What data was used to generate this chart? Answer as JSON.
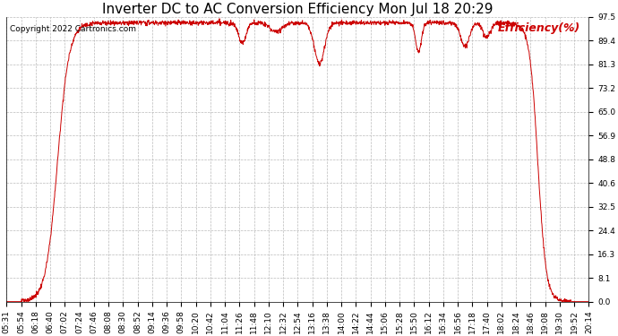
{
  "title": "Inverter DC to AC Conversion Efficiency Mon Jul 18 20:29",
  "copyright": "Copyright 2022 Cartronics.com",
  "legend_label": "Efficiency(%)",
  "line_color": "#cc0000",
  "background_color": "#ffffff",
  "grid_color": "#bbbbbb",
  "yticks": [
    0.0,
    8.1,
    16.3,
    24.4,
    32.5,
    40.6,
    48.8,
    56.9,
    65.0,
    73.2,
    81.3,
    89.4,
    97.5
  ],
  "ylim": [
    0.0,
    97.5
  ],
  "xtick_labels": [
    "05:31",
    "05:54",
    "06:18",
    "06:40",
    "07:02",
    "07:24",
    "07:46",
    "08:08",
    "08:30",
    "08:52",
    "09:14",
    "09:36",
    "09:58",
    "10:20",
    "10:42",
    "11:04",
    "11:26",
    "11:48",
    "12:10",
    "12:32",
    "12:54",
    "13:16",
    "13:38",
    "14:00",
    "14:22",
    "14:44",
    "15:06",
    "15:28",
    "15:50",
    "16:12",
    "16:34",
    "16:56",
    "17:18",
    "17:40",
    "18:02",
    "18:24",
    "18:46",
    "19:08",
    "19:30",
    "19:52",
    "20:14"
  ],
  "title_fontsize": 11,
  "axis_fontsize": 6.5,
  "copyright_fontsize": 6.5,
  "legend_fontsize": 9
}
